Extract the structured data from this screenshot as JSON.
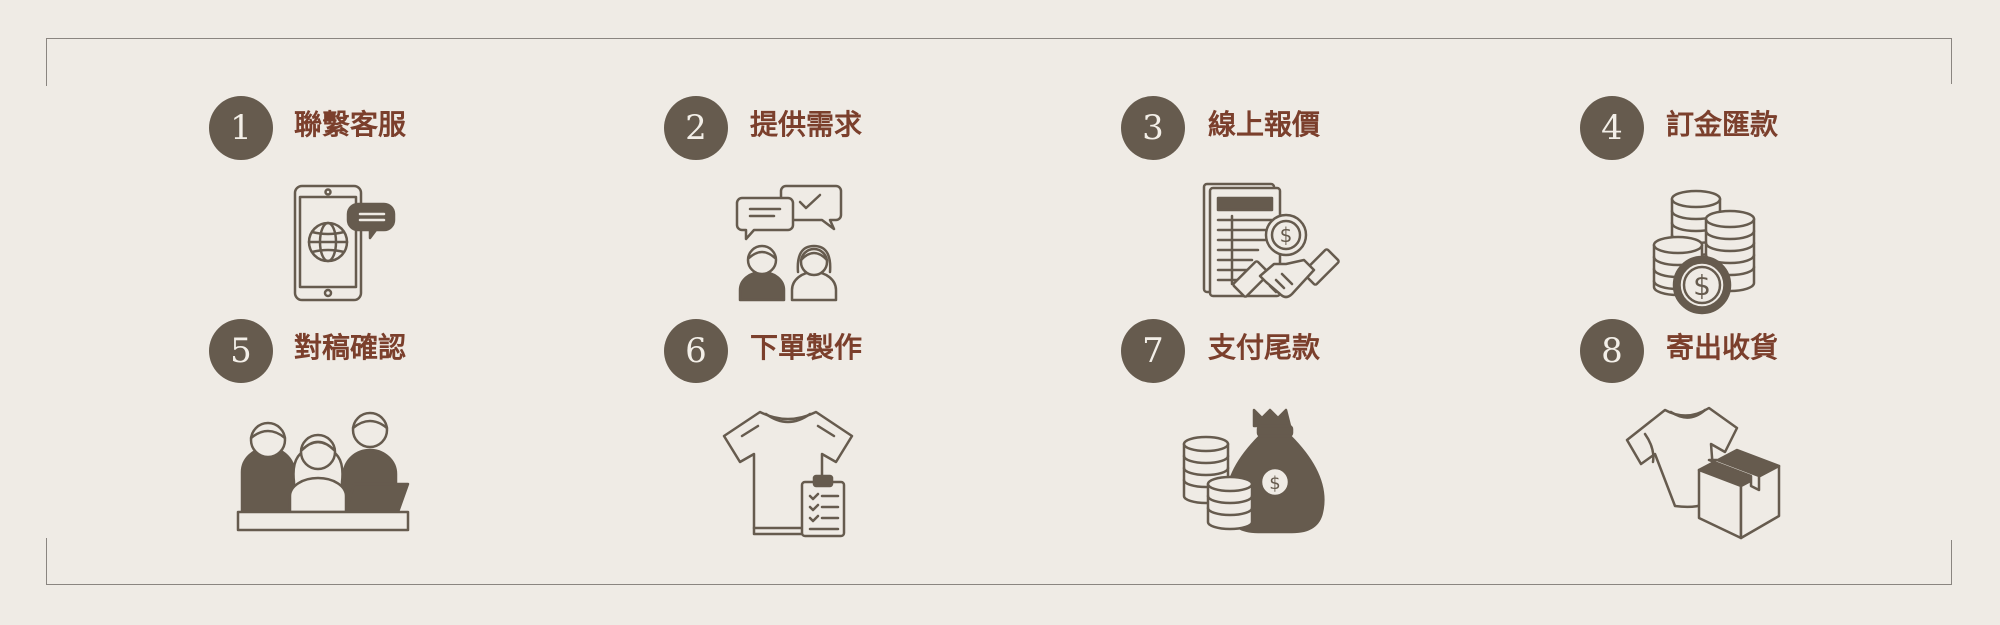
{
  "steps": [
    {
      "number": "1",
      "label": "聯繫客服",
      "icon": "phone-chat-icon"
    },
    {
      "number": "2",
      "label": "提供需求",
      "icon": "conversation-icon"
    },
    {
      "number": "3",
      "label": "線上報價",
      "icon": "quote-handshake-icon"
    },
    {
      "number": "4",
      "label": "訂金匯款",
      "icon": "coin-stack-icon"
    },
    {
      "number": "5",
      "label": "對稿確認",
      "icon": "team-laptop-icon"
    },
    {
      "number": "6",
      "label": "下單製作",
      "icon": "tshirt-checklist-icon"
    },
    {
      "number": "7",
      "label": "支付尾款",
      "icon": "money-bag-icon"
    },
    {
      "number": "8",
      "label": "寄出收貨",
      "icon": "shirt-package-icon"
    }
  ],
  "colors": {
    "background": "#efebe5",
    "badge": "#665b4e",
    "label": "#7b3f2c",
    "icon": "#665b4e"
  }
}
